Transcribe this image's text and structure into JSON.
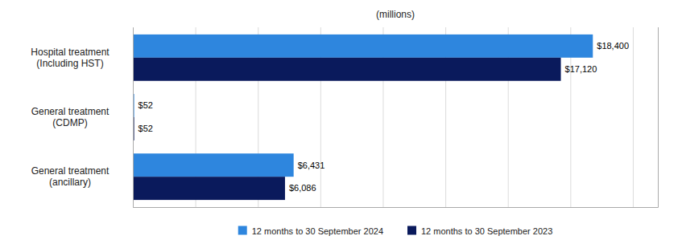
{
  "chart_data": {
    "type": "bar",
    "orientation": "horizontal",
    "xlabel": "(millions)",
    "categories": [
      "General treatment\n(ancillary)",
      "General treatment\n(CDMP)",
      "Hospital treatment\n(Including HST)"
    ],
    "series": [
      {
        "name": "12 months to 30 September 2024",
        "color": "#2e86de",
        "values": [
          6431,
          52,
          18400
        ],
        "value_labels": [
          "$6,431",
          "$52",
          "$18,400"
        ]
      },
      {
        "name": "12 months to 30 September 2023",
        "color": "#0a1a5c",
        "values": [
          6086,
          52,
          17120
        ],
        "value_labels": [
          "$6,086",
          "$52",
          "$17,120"
        ]
      }
    ],
    "xlim": [
      0,
      21000
    ],
    "xticks": [
      0,
      2500,
      5000,
      7500,
      10000,
      12500,
      15000,
      17500,
      20000
    ],
    "grid": true,
    "legend": "bottom",
    "data_labels": true,
    "tick_labels": "y"
  }
}
